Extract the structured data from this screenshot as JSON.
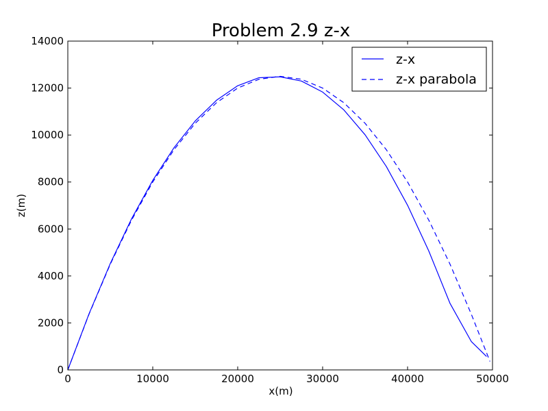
{
  "chart_data": {
    "type": "line",
    "title": "Problem 2.9 z-x",
    "xlabel": "x(m)",
    "ylabel": "z(m)",
    "xlim": [
      0,
      50000
    ],
    "ylim": [
      0,
      14000
    ],
    "xticks": [
      0,
      10000,
      20000,
      30000,
      40000,
      50000
    ],
    "yticks": [
      0,
      2000,
      4000,
      6000,
      8000,
      10000,
      12000,
      14000
    ],
    "xtick_labels": [
      "0",
      "10000",
      "20000",
      "30000",
      "40000",
      "50000"
    ],
    "ytick_labels": [
      "0",
      "2000",
      "4000",
      "6000",
      "8000",
      "10000",
      "12000",
      "14000"
    ],
    "grid": false,
    "legend_position": "top-right",
    "series": [
      {
        "name": "z-x",
        "color": "#0000ff",
        "style": "solid",
        "x": [
          0,
          2500,
          5000,
          7500,
          10000,
          12500,
          15000,
          17500,
          20000,
          22500,
          25000,
          27500,
          30000,
          32500,
          35000,
          37500,
          40000,
          42500,
          45000,
          47500,
          49300
        ],
        "y": [
          0,
          2390,
          4530,
          6430,
          8070,
          9460,
          10600,
          11480,
          12100,
          12440,
          12480,
          12300,
          11830,
          11070,
          10010,
          8660,
          7010,
          5060,
          2830,
          1210,
          570
        ]
      },
      {
        "name": "z-x parabola",
        "color": "#0000ff",
        "style": "dashed",
        "x": [
          0,
          2500,
          5000,
          7500,
          10000,
          12500,
          15000,
          17500,
          20000,
          22500,
          25000,
          27500,
          30000,
          32500,
          35000,
          37500,
          40000,
          42500,
          45000,
          47500,
          49700
        ],
        "y": [
          0,
          2375,
          4500,
          6375,
          8000,
          9375,
          10500,
          11375,
          12000,
          12375,
          12500,
          12375,
          12000,
          11375,
          10500,
          9375,
          8000,
          6375,
          4500,
          2375,
          360
        ]
      }
    ]
  }
}
